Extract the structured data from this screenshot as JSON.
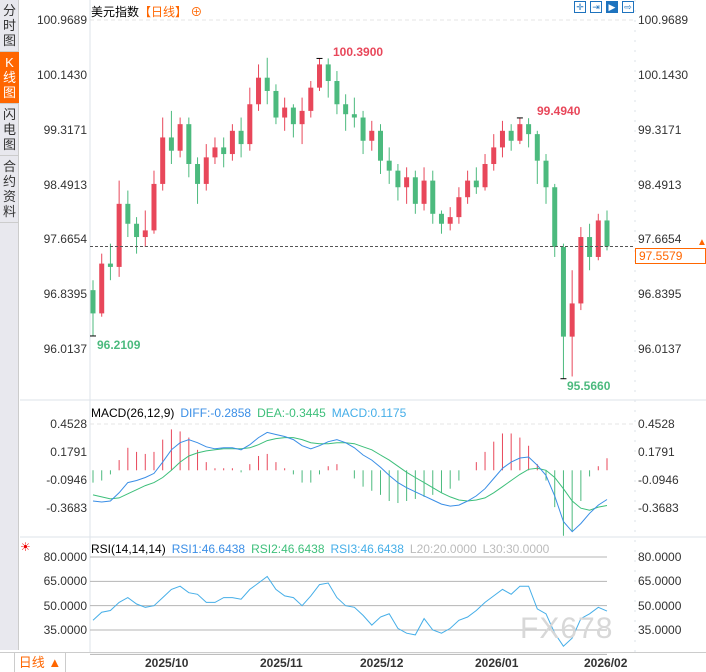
{
  "sidebar": {
    "tabs": [
      "分时图",
      "K线图",
      "闪电图",
      "合约资料"
    ],
    "active": 1
  },
  "header": {
    "title": "美元指数",
    "period": "【日线】",
    "toolbar_icons": [
      "crosshair-icon",
      "range-select-icon",
      "play-icon",
      "exit-icon"
    ]
  },
  "colors": {
    "up": "#e8475a",
    "down": "#4cba7e",
    "diff": "#3a8ee6",
    "dea": "#3dbf7a",
    "rsi": "#45aee8",
    "accent": "#ff6600"
  },
  "main": {
    "y_ticks": [
      "100.9689",
      "100.1430",
      "99.3171",
      "98.4913",
      "97.6654",
      "96.8395",
      "96.0137"
    ],
    "high_label": "100.3900",
    "high2_label": "99.4940",
    "low_label": "96.2109",
    "low2_label": "95.5660",
    "current_price": "97.5579"
  },
  "macd": {
    "label": "MACD(26,12,9)",
    "diff_label": "DIFF:-0.2858",
    "dea_label": "DEA:-0.3445",
    "macd_label": "MACD:0.1175",
    "y_ticks": [
      "0.4528",
      "0.1791",
      "-0.0946",
      "-0.3683"
    ]
  },
  "rsi": {
    "label": "RSI(14,14,14)",
    "rsi1_label": "RSI1:46.6438",
    "rsi2_label": "RSI2:46.6438",
    "rsi3_label": "RSI3:46.6438",
    "l20_label": "L20:20.0000",
    "l30_label": "L30:30.0000",
    "y_ticks": [
      "80.0000",
      "65.0000",
      "50.0000",
      "35.0000"
    ]
  },
  "bottom": {
    "period": "日线 ▲",
    "dates": [
      "2025/10",
      "2025/11",
      "2025/12",
      "2026/01",
      "2026/02"
    ]
  },
  "watermark": "FX678",
  "chart_data": {
    "type": "candlestick",
    "ylim": [
      96.0137,
      100.9689
    ],
    "ohlc": [
      [
        96.9,
        97.05,
        96.21,
        96.55
      ],
      [
        96.55,
        97.45,
        96.5,
        97.3
      ],
      [
        97.3,
        97.6,
        97.05,
        97.25
      ],
      [
        97.25,
        98.55,
        97.1,
        98.2
      ],
      [
        98.2,
        98.4,
        97.7,
        97.9
      ],
      [
        97.9,
        98.0,
        97.45,
        97.7
      ],
      [
        97.7,
        98.1,
        97.55,
        97.8
      ],
      [
        97.8,
        98.7,
        97.75,
        98.5
      ],
      [
        98.5,
        99.5,
        98.4,
        99.2
      ],
      [
        99.2,
        99.6,
        98.8,
        99.0
      ],
      [
        99.0,
        99.5,
        98.9,
        99.4
      ],
      [
        99.4,
        99.5,
        98.6,
        98.8
      ],
      [
        98.8,
        98.9,
        98.2,
        98.5
      ],
      [
        98.5,
        99.1,
        98.4,
        98.9
      ],
      [
        98.9,
        99.2,
        98.8,
        99.05
      ],
      [
        99.05,
        99.2,
        98.75,
        98.95
      ],
      [
        98.95,
        99.4,
        98.85,
        99.3
      ],
      [
        99.3,
        99.5,
        98.9,
        99.1
      ],
      [
        99.1,
        99.95,
        99.0,
        99.7
      ],
      [
        99.7,
        100.3,
        99.6,
        100.1
      ],
      [
        100.1,
        100.4,
        99.7,
        99.9
      ],
      [
        99.9,
        100.0,
        99.4,
        99.5
      ],
      [
        99.5,
        99.8,
        99.3,
        99.65
      ],
      [
        99.65,
        99.7,
        99.2,
        99.4
      ],
      [
        99.4,
        99.8,
        99.1,
        99.6
      ],
      [
        99.6,
        100.05,
        99.5,
        99.95
      ],
      [
        99.95,
        100.39,
        99.9,
        100.3
      ],
      [
        100.3,
        100.39,
        99.8,
        100.05
      ],
      [
        100.05,
        100.2,
        99.55,
        99.7
      ],
      [
        99.7,
        99.85,
        99.3,
        99.55
      ],
      [
        99.55,
        99.8,
        99.35,
        99.5
      ],
      [
        99.5,
        99.6,
        98.95,
        99.15
      ],
      [
        99.15,
        99.45,
        99.0,
        99.3
      ],
      [
        99.3,
        99.4,
        98.65,
        98.85
      ],
      [
        98.85,
        99.05,
        98.5,
        98.7
      ],
      [
        98.7,
        98.8,
        98.25,
        98.45
      ],
      [
        98.45,
        98.75,
        98.2,
        98.6
      ],
      [
        98.6,
        98.7,
        98.05,
        98.2
      ],
      [
        98.2,
        98.75,
        98.1,
        98.55
      ],
      [
        98.55,
        98.7,
        97.9,
        98.05
      ],
      [
        98.05,
        98.1,
        97.75,
        97.9
      ],
      [
        97.9,
        98.15,
        97.8,
        98.0
      ],
      [
        98.0,
        98.45,
        97.9,
        98.3
      ],
      [
        98.3,
        98.7,
        98.2,
        98.55
      ],
      [
        98.55,
        98.75,
        98.35,
        98.45
      ],
      [
        98.45,
        98.95,
        98.4,
        98.8
      ],
      [
        98.8,
        99.25,
        98.7,
        99.05
      ],
      [
        99.05,
        99.45,
        98.9,
        99.3
      ],
      [
        99.3,
        99.4,
        99.0,
        99.15
      ],
      [
        99.15,
        99.494,
        99.1,
        99.4
      ],
      [
        99.4,
        99.49,
        99.05,
        99.25
      ],
      [
        99.25,
        99.3,
        98.5,
        98.85
      ],
      [
        98.85,
        98.95,
        98.2,
        98.45
      ],
      [
        98.45,
        98.5,
        97.4,
        97.55
      ],
      [
        97.55,
        97.6,
        95.566,
        96.2
      ],
      [
        96.2,
        97.2,
        95.6,
        96.7
      ],
      [
        96.7,
        97.85,
        96.6,
        97.7
      ],
      [
        97.7,
        97.9,
        97.2,
        97.4
      ],
      [
        97.4,
        98.05,
        97.35,
        97.95
      ],
      [
        97.95,
        98.1,
        97.5,
        97.5579
      ]
    ],
    "macd": {
      "ylim": [
        -0.65,
        0.52
      ],
      "diff": [
        -0.3,
        -0.31,
        -0.3,
        -0.22,
        -0.12,
        -0.1,
        -0.07,
        -0.03,
        0.08,
        0.2,
        0.27,
        0.3,
        0.27,
        0.23,
        0.21,
        0.22,
        0.22,
        0.2,
        0.25,
        0.32,
        0.37,
        0.35,
        0.33,
        0.3,
        0.24,
        0.21,
        0.24,
        0.28,
        0.3,
        0.27,
        0.22,
        0.15,
        0.1,
        0.03,
        -0.05,
        -0.12,
        -0.17,
        -0.21,
        -0.25,
        -0.29,
        -0.33,
        -0.35,
        -0.34,
        -0.3,
        -0.25,
        -0.18,
        -0.08,
        0.02,
        0.08,
        0.12,
        0.13,
        0.05,
        -0.05,
        -0.25,
        -0.5,
        -0.6,
        -0.52,
        -0.42,
        -0.34,
        -0.2858
      ],
      "dea": [
        -0.24,
        -0.26,
        -0.28,
        -0.27,
        -0.23,
        -0.19,
        -0.15,
        -0.12,
        -0.07,
        0.0,
        0.08,
        0.14,
        0.17,
        0.19,
        0.2,
        0.21,
        0.21,
        0.21,
        0.22,
        0.25,
        0.29,
        0.31,
        0.32,
        0.32,
        0.3,
        0.27,
        0.26,
        0.26,
        0.27,
        0.27,
        0.26,
        0.23,
        0.2,
        0.15,
        0.1,
        0.04,
        -0.02,
        -0.07,
        -0.12,
        -0.17,
        -0.22,
        -0.26,
        -0.29,
        -0.3,
        -0.29,
        -0.27,
        -0.22,
        -0.16,
        -0.1,
        -0.04,
        0.01,
        0.02,
        0.0,
        -0.07,
        -0.18,
        -0.3,
        -0.37,
        -0.39,
        -0.36,
        -0.3445
      ]
    },
    "rsi": {
      "ylim": [
        20,
        85
      ],
      "values": [
        41,
        46,
        47,
        52,
        55,
        51,
        49,
        50,
        55,
        60,
        62,
        58,
        57,
        52,
        52,
        55,
        55,
        54,
        60,
        64,
        68,
        60,
        56,
        55,
        50,
        56,
        63,
        64,
        55,
        50,
        49,
        44,
        38,
        43,
        45,
        36,
        33,
        32,
        42,
        35,
        33,
        36,
        41,
        43,
        47,
        52,
        56,
        60,
        57,
        62,
        62,
        48,
        45,
        33,
        25,
        30,
        42,
        45,
        49,
        46.64
      ],
      "gridlines": [
        80,
        65,
        50,
        35,
        20
      ]
    }
  }
}
